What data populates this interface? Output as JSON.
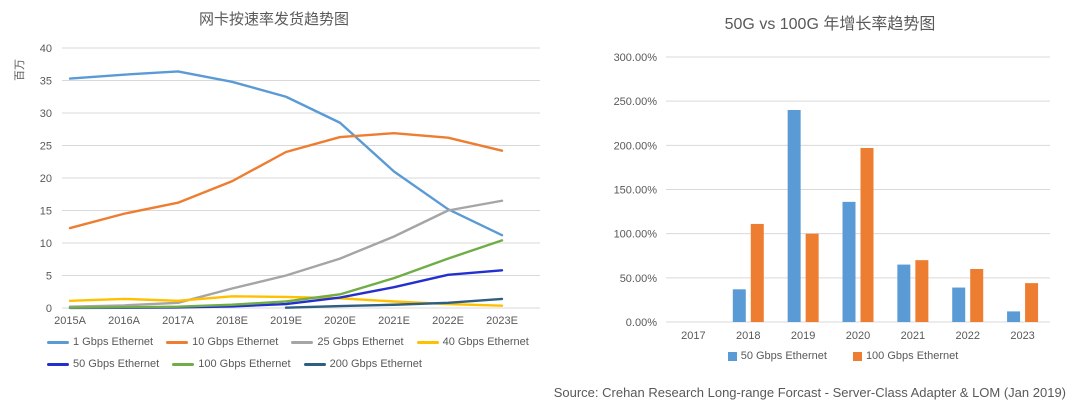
{
  "source_note": "Source: Crehan Research Long-range Forcast - Server-Class Adapter & LOM (Jan 2019)",
  "grid_color": "#D9D9D9",
  "text_color": "#595959",
  "chart_data": [
    {
      "type": "line",
      "title": "网卡按速率发货趋势图",
      "ylabel": "百万",
      "categories": [
        "2015A",
        "2016A",
        "2017A",
        "2018E",
        "2019E",
        "2020E",
        "2021E",
        "2022E",
        "2023E"
      ],
      "ylim": [
        0,
        40
      ],
      "ytick_step": 5,
      "ytick_format": "number",
      "grid": true,
      "legend_position": "bottom",
      "series": [
        {
          "name": "1 Gbps Ethernet",
          "color": "#5B9BD5",
          "values": [
            35.3,
            35.9,
            36.4,
            34.8,
            32.5,
            28.5,
            21.0,
            15.2,
            11.2
          ]
        },
        {
          "name": "10 Gbps Ethernet",
          "color": "#ED7D31",
          "values": [
            12.3,
            14.5,
            16.2,
            19.5,
            24.0,
            26.3,
            26.9,
            26.2,
            24.2
          ]
        },
        {
          "name": "25 Gbps Ethernet",
          "color": "#A5A5A5",
          "values": [
            0.2,
            0.4,
            0.8,
            3.0,
            5.0,
            7.6,
            11.0,
            15.0,
            16.5
          ]
        },
        {
          "name": "40 Gbps Ethernet",
          "color": "#FFC000",
          "values": [
            1.1,
            1.4,
            1.1,
            1.8,
            1.7,
            1.5,
            1.0,
            0.6,
            0.35
          ]
        },
        {
          "name": "50 Gbps Ethernet",
          "color": "#2430CE",
          "values": [
            0.02,
            0.03,
            0.08,
            0.25,
            0.6,
            1.6,
            3.2,
            5.1,
            5.8
          ]
        },
        {
          "name": "100 Gbps Ethernet",
          "color": "#70AD47",
          "values": [
            0.05,
            0.1,
            0.2,
            0.5,
            1.0,
            2.1,
            4.6,
            7.6,
            10.4
          ]
        },
        {
          "name": "200 Gbps Ethernet",
          "color": "#2E5E82",
          "values": [
            null,
            null,
            null,
            null,
            0.05,
            0.3,
            0.5,
            0.8,
            1.4
          ]
        }
      ]
    },
    {
      "type": "bar",
      "title": "50G vs 100G 年增长率趋势图",
      "categories": [
        "2017",
        "2018",
        "2019",
        "2020",
        "2021",
        "2022",
        "2023"
      ],
      "ylim": [
        0,
        300
      ],
      "ytick_step": 50,
      "ytick_format": "percent2",
      "grid": true,
      "legend_position": "bottom",
      "series": [
        {
          "name": "50 Gbps Ethernet",
          "color": "#5B9BD5",
          "values": [
            0,
            37,
            240,
            136,
            65,
            39,
            12
          ]
        },
        {
          "name": "100 Gbps Ethernet",
          "color": "#ED7D31",
          "values": [
            0,
            111,
            100,
            197,
            70,
            60,
            44
          ]
        }
      ]
    }
  ]
}
